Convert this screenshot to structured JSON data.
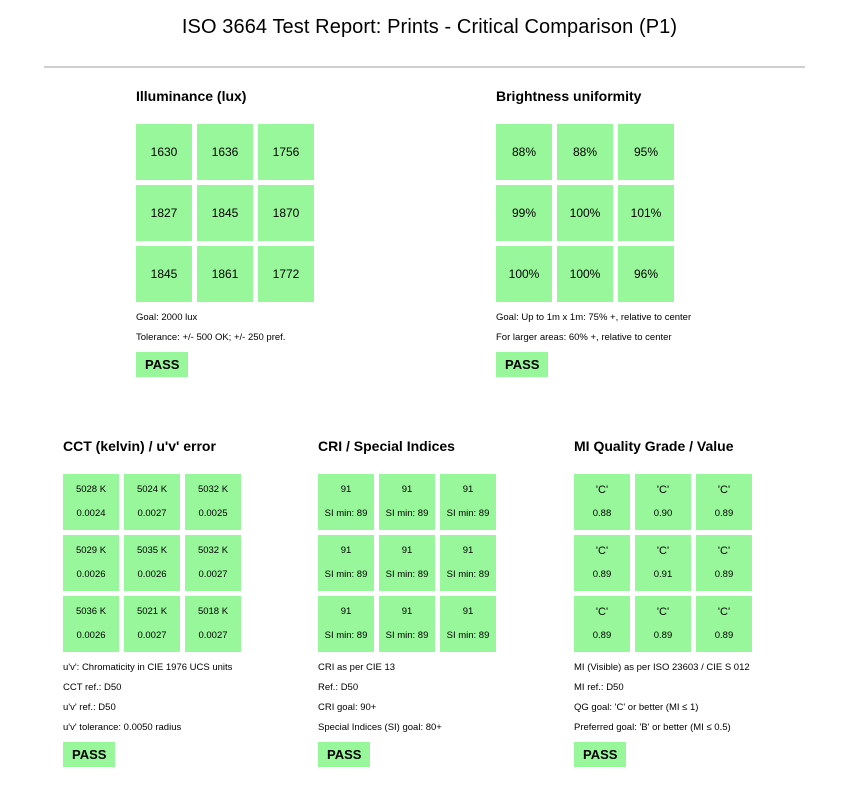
{
  "title": "ISO 3664 Test Report:  Prints - Critical Comparison (P1)",
  "illuminance": {
    "title": "Illuminance (lux)",
    "cells": [
      "1630",
      "1636",
      "1756",
      "1827",
      "1845",
      "1870",
      "1845",
      "1861",
      "1772"
    ],
    "notes": [
      "Goal: 2000 lux",
      "Tolerance: +/- 500 OK; +/- 250 pref."
    ],
    "result": "PASS"
  },
  "uniformity": {
    "title": "Brightness uniformity",
    "cells": [
      "88%",
      "88%",
      "95%",
      "99%",
      "100%",
      "101%",
      "100%",
      "100%",
      "96%"
    ],
    "notes": [
      "Goal: Up to 1m x 1m: 75% +, relative to center",
      "For larger areas: 60% +, relative to center"
    ],
    "result": "PASS"
  },
  "cct": {
    "title": "CCT (kelvin) / u'v' error",
    "cells": [
      {
        "top": "5028 K",
        "bottom": "0.0024"
      },
      {
        "top": "5024 K",
        "bottom": "0.0027"
      },
      {
        "top": "5032 K",
        "bottom": "0.0025"
      },
      {
        "top": "5029 K",
        "bottom": "0.0026"
      },
      {
        "top": "5035 K",
        "bottom": "0.0026"
      },
      {
        "top": "5032 K",
        "bottom": "0.0027"
      },
      {
        "top": "5036 K",
        "bottom": "0.0026"
      },
      {
        "top": "5021 K",
        "bottom": "0.0027"
      },
      {
        "top": "5018 K",
        "bottom": "0.0027"
      }
    ],
    "notes": [
      "u'v': Chromaticity in CIE 1976 UCS units",
      "CCT ref.: D50",
      "u'v' ref.: D50",
      "u'v' tolerance: 0.0050 radius"
    ],
    "result": "PASS"
  },
  "cri": {
    "title": "CRI / Special Indices",
    "cells": [
      {
        "top": "91",
        "bottom": "SI min: 89"
      },
      {
        "top": "91",
        "bottom": "SI min: 89"
      },
      {
        "top": "91",
        "bottom": "SI min: 89"
      },
      {
        "top": "91",
        "bottom": "SI min: 89"
      },
      {
        "top": "91",
        "bottom": "SI min: 89"
      },
      {
        "top": "91",
        "bottom": "SI min: 89"
      },
      {
        "top": "91",
        "bottom": "SI min: 89"
      },
      {
        "top": "91",
        "bottom": "SI min: 89"
      },
      {
        "top": "91",
        "bottom": "SI min: 89"
      }
    ],
    "notes": [
      "CRI as per CIE 13",
      "Ref.: D50",
      "CRI goal: 90+",
      "Special Indices (SI) goal: 80+"
    ],
    "result": "PASS"
  },
  "mi": {
    "title": "MI Quality Grade / Value",
    "cells": [
      {
        "top": "'C'",
        "bottom": "0.88"
      },
      {
        "top": "'C'",
        "bottom": "0.90"
      },
      {
        "top": "'C'",
        "bottom": "0.89"
      },
      {
        "top": "'C'",
        "bottom": "0.89"
      },
      {
        "top": "'C'",
        "bottom": "0.91"
      },
      {
        "top": "'C'",
        "bottom": "0.89"
      },
      {
        "top": "'C'",
        "bottom": "0.89"
      },
      {
        "top": "'C'",
        "bottom": "0.89"
      },
      {
        "top": "'C'",
        "bottom": "0.89"
      }
    ],
    "notes": [
      "MI (Visible) as per ISO 23603 / CIE S 012",
      "MI ref.: D50",
      "QG goal: 'C' or better (MI ≤ 1)",
      "Preferred goal: 'B' or better (MI ≤ 0.5)"
    ],
    "result": "PASS"
  },
  "colors": {
    "pass_green": "#99f79b",
    "rule_gray": "#cfcfcf"
  }
}
